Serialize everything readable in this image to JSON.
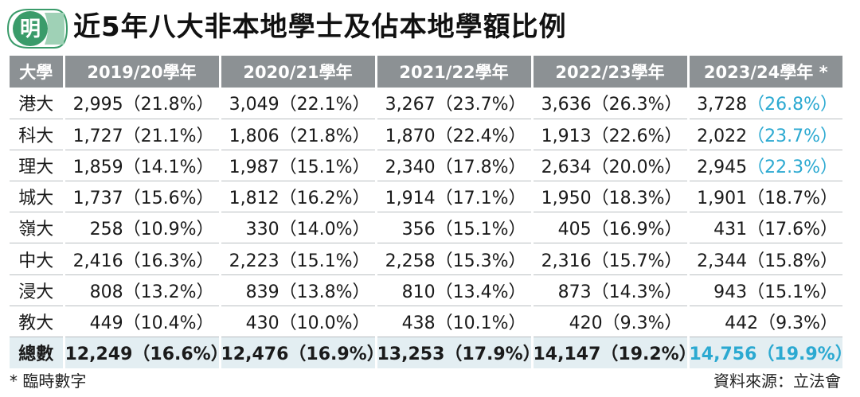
{
  "logo": {
    "glyph": "明"
  },
  "title": "近5年八大非本地學士及佔本地學額比例",
  "table": {
    "headers": [
      "大學",
      "2019/20學年",
      "2020/21學年",
      "2021/22學年",
      "2022/23學年",
      "2023/24學年 *"
    ],
    "rows": [
      {
        "name": "港大",
        "cells": [
          {
            "count": "2,995",
            "pct": "（21.8%）"
          },
          {
            "count": "3,049",
            "pct": "（22.1%）"
          },
          {
            "count": "3,267",
            "pct": "（23.7%）"
          },
          {
            "count": "3,636",
            "pct": "（26.3%）"
          },
          {
            "count": "3,728",
            "pct": "（26.8%）"
          }
        ]
      },
      {
        "name": "科大",
        "cells": [
          {
            "count": "1,727",
            "pct": "（21.1%）"
          },
          {
            "count": "1,806",
            "pct": "（21.8%）"
          },
          {
            "count": "1,870",
            "pct": "（22.4%）"
          },
          {
            "count": "1,913",
            "pct": "（22.6%）"
          },
          {
            "count": "2,022",
            "pct": "（23.7%）"
          }
        ]
      },
      {
        "name": "理大",
        "cells": [
          {
            "count": "1,859",
            "pct": "（14.1%）"
          },
          {
            "count": "1,987",
            "pct": "（15.1%）"
          },
          {
            "count": "2,340",
            "pct": "（17.8%）"
          },
          {
            "count": "2,634",
            "pct": "（20.0%）"
          },
          {
            "count": "2,945",
            "pct": "（22.3%）"
          }
        ]
      },
      {
        "name": "城大",
        "cells": [
          {
            "count": "1,737",
            "pct": "（15.6%）"
          },
          {
            "count": "1,812",
            "pct": "（16.2%）"
          },
          {
            "count": "1,914",
            "pct": "（17.1%）"
          },
          {
            "count": "1,950",
            "pct": "（18.3%）"
          },
          {
            "count": "1,901",
            "pct": "（18.7%）"
          }
        ]
      },
      {
        "name": "嶺大",
        "cells": [
          {
            "count": "258",
            "pct": "（10.9%）"
          },
          {
            "count": "330",
            "pct": "（14.0%）"
          },
          {
            "count": "356",
            "pct": "（15.1%）"
          },
          {
            "count": "405",
            "pct": "（16.9%）"
          },
          {
            "count": "431",
            "pct": "（17.6%）"
          }
        ]
      },
      {
        "name": "中大",
        "cells": [
          {
            "count": "2,416",
            "pct": "（16.3%）"
          },
          {
            "count": "2,223",
            "pct": "（15.1%）"
          },
          {
            "count": "2,258",
            "pct": "（15.3%）"
          },
          {
            "count": "2,316",
            "pct": "（15.7%）"
          },
          {
            "count": "2,344",
            "pct": "（15.8%）"
          }
        ]
      },
      {
        "name": "浸大",
        "cells": [
          {
            "count": "808",
            "pct": "（13.2%）"
          },
          {
            "count": "839",
            "pct": "（13.8%）"
          },
          {
            "count": "810",
            "pct": "（13.4%）"
          },
          {
            "count": "873",
            "pct": "（14.3%）"
          },
          {
            "count": "943",
            "pct": "（15.1%）"
          }
        ]
      },
      {
        "name": "教大",
        "cells": [
          {
            "count": "449",
            "pct": "（10.4%）"
          },
          {
            "count": "430",
            "pct": "（10.0%）"
          },
          {
            "count": "438",
            "pct": "（10.1%）"
          },
          {
            "count": "420",
            "pct": "（9.3%）"
          },
          {
            "count": "442",
            "pct": "（9.3%）"
          }
        ]
      }
    ],
    "total": {
      "name": "總數",
      "cells": [
        {
          "count": "12,249",
          "pct": "（16.6%）"
        },
        {
          "count": "12,476",
          "pct": "（16.9%）"
        },
        {
          "count": "13,253",
          "pct": "（17.9%）"
        },
        {
          "count": "14,147",
          "pct": "（19.2%）"
        },
        {
          "count": "14,756",
          "pct": "（19.9%）"
        }
      ]
    }
  },
  "footer": {
    "note": "* 臨時數字",
    "source": "資料來源：立法會"
  },
  "colors": {
    "header_bg": "#8c9194",
    "highlight": "#2ba9d1",
    "total_bg": "#e3eef2",
    "logo_green": "#3a9b6a"
  }
}
